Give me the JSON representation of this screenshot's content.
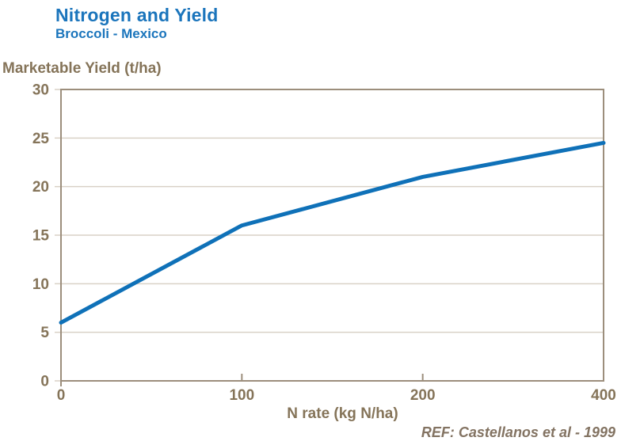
{
  "header": {
    "title": "Nitrogen and Yield",
    "subtitle": "Broccoli - Mexico"
  },
  "chart_data": {
    "type": "line",
    "title": "Nitrogen and Yield",
    "subtitle": "Broccoli - Mexico",
    "ylabel": "Marketable Yield (t/ha)",
    "xlabel": "N rate (kg N/ha)",
    "x_axis_type": "category",
    "categories": [
      "0",
      "100",
      "200",
      "400"
    ],
    "series": [
      {
        "name": "Marketable Yield",
        "values": [
          6,
          16,
          21,
          24.5
        ]
      }
    ],
    "ylim": [
      0,
      30
    ],
    "yticks": [
      0,
      5,
      10,
      15,
      20,
      25,
      30
    ],
    "grid": true,
    "legend": "none"
  },
  "footer": {
    "reference": "REF: Castellanos et al - 1999"
  },
  "colors": {
    "title_blue": "#1B75BC",
    "line_blue": "#0F71B8",
    "text_brown": "#857459",
    "axis_brown": "#9C8E7C",
    "grid_tan": "#D9D1C6",
    "background": "#FFFFFF"
  }
}
